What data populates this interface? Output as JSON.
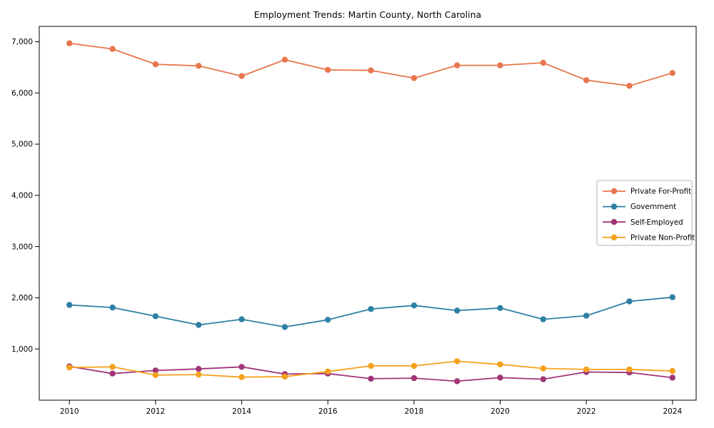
{
  "chart_data": {
    "type": "line",
    "title": "Employment Trends: Martin County, North Carolina",
    "xlabel": "",
    "ylabel": "",
    "grid": false,
    "marker": "circle",
    "legend_position": "center-right",
    "x": [
      2010,
      2011,
      2012,
      2013,
      2014,
      2015,
      2016,
      2017,
      2018,
      2019,
      2020,
      2021,
      2022,
      2023,
      2024
    ],
    "series": [
      {
        "name": "Private For-Profit",
        "color": "#E8764E",
        "values": [
          6970,
          6860,
          6560,
          6530,
          6330,
          6650,
          6450,
          6440,
          6290,
          6540,
          6540,
          6590,
          6250,
          6140,
          6390
        ]
      },
      {
        "name": "Government",
        "color": "#2E81A4",
        "values": [
          1860,
          1810,
          1640,
          1470,
          1580,
          1430,
          1570,
          1780,
          1850,
          1750,
          1800,
          1580,
          1650,
          1930,
          2010
        ]
      },
      {
        "name": "Self-Employed",
        "color": "#A03577",
        "values": [
          660,
          520,
          580,
          610,
          650,
          510,
          520,
          420,
          430,
          370,
          440,
          410,
          550,
          540,
          440
        ]
      },
      {
        "name": "Private Non-Profit",
        "color": "#F5A11C",
        "values": [
          640,
          650,
          490,
          500,
          450,
          460,
          560,
          670,
          670,
          760,
          700,
          620,
          600,
          600,
          570
        ]
      }
    ],
    "xlim": [
      2009.3,
      2024.55
    ],
    "ylim": [
      0,
      7300
    ],
    "x_ticks": [
      2010,
      2012,
      2014,
      2016,
      2018,
      2020,
      2022,
      2024
    ],
    "x_tick_labels": [
      "2010",
      "2012",
      "2014",
      "2016",
      "2018",
      "2020",
      "2022",
      "2024"
    ],
    "y_ticks": [
      1000,
      2000,
      3000,
      4000,
      5000,
      6000,
      7000
    ],
    "y_tick_labels": [
      "1,000",
      "2,000",
      "3,000",
      "4,000",
      "5,000",
      "6,000",
      "7,000"
    ],
    "axis_color": "#000000",
    "tick_label_color": "#000000",
    "legend_border_color": "#b0b0b0"
  }
}
